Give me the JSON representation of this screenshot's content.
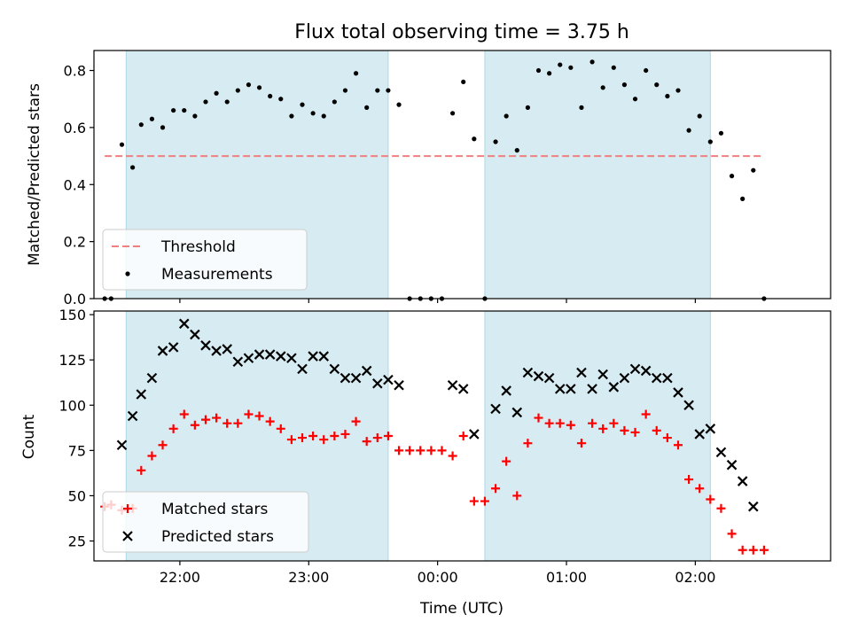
{
  "chart_data": [
    {
      "type": "scatter",
      "title": "Flux total observing time = 3.75 h",
      "ylabel": "Matched/Predicted stars",
      "xlabel": "",
      "xlim": [
        "21:20",
        "03:03"
      ],
      "ylim": [
        0,
        0.87
      ],
      "xticks": [
        "22:00",
        "23:00",
        "00:00",
        "01:00",
        "02:00"
      ],
      "yticks": [
        "0.0",
        "0.2",
        "0.4",
        "0.6",
        "0.8"
      ],
      "highlight_spans": [
        [
          "21:35",
          "23:37"
        ],
        [
          "00:22",
          "02:07"
        ]
      ],
      "highlight_color": "#add8e6",
      "threshold": {
        "name": "Threshold",
        "value": 0.5,
        "x_range": [
          "21:25",
          "02:32"
        ],
        "color": "#f08080"
      },
      "legend": {
        "placement": "lower-left",
        "entries": [
          "Threshold",
          "Measurements"
        ]
      },
      "series": [
        {
          "name": "Measurements",
          "color": "#000000",
          "points": [
            [
              "21:25",
              0.0
            ],
            [
              "21:28",
              0.0
            ],
            [
              "21:33",
              0.54
            ],
            [
              "21:38",
              0.46
            ],
            [
              "21:42",
              0.61
            ],
            [
              "21:47",
              0.63
            ],
            [
              "21:52",
              0.6
            ],
            [
              "21:57",
              0.66
            ],
            [
              "22:02",
              0.66
            ],
            [
              "22:07",
              0.64
            ],
            [
              "22:12",
              0.69
            ],
            [
              "22:17",
              0.72
            ],
            [
              "22:22",
              0.69
            ],
            [
              "22:27",
              0.73
            ],
            [
              "22:32",
              0.75
            ],
            [
              "22:37",
              0.74
            ],
            [
              "22:42",
              0.71
            ],
            [
              "22:47",
              0.7
            ],
            [
              "22:52",
              0.64
            ],
            [
              "22:57",
              0.68
            ],
            [
              "23:02",
              0.65
            ],
            [
              "23:07",
              0.64
            ],
            [
              "23:12",
              0.69
            ],
            [
              "23:17",
              0.73
            ],
            [
              "23:22",
              0.79
            ],
            [
              "23:27",
              0.67
            ],
            [
              "23:32",
              0.73
            ],
            [
              "23:37",
              0.73
            ],
            [
              "23:42",
              0.68
            ],
            [
              "23:47",
              0.0
            ],
            [
              "23:52",
              0.0
            ],
            [
              "23:57",
              0.0
            ],
            [
              "00:02",
              0.0
            ],
            [
              "00:07",
              0.65
            ],
            [
              "00:12",
              0.76
            ],
            [
              "00:17",
              0.56
            ],
            [
              "00:22",
              0.0
            ],
            [
              "00:27",
              0.55
            ],
            [
              "00:32",
              0.64
            ],
            [
              "00:37",
              0.52
            ],
            [
              "00:42",
              0.67
            ],
            [
              "00:47",
              0.8
            ],
            [
              "00:52",
              0.79
            ],
            [
              "00:57",
              0.82
            ],
            [
              "01:02",
              0.81
            ],
            [
              "01:07",
              0.67
            ],
            [
              "01:12",
              0.83
            ],
            [
              "01:17",
              0.74
            ],
            [
              "01:22",
              0.81
            ],
            [
              "01:27",
              0.75
            ],
            [
              "01:32",
              0.7
            ],
            [
              "01:37",
              0.8
            ],
            [
              "01:42",
              0.75
            ],
            [
              "01:47",
              0.71
            ],
            [
              "01:52",
              0.73
            ],
            [
              "01:57",
              0.59
            ],
            [
              "02:02",
              0.64
            ],
            [
              "02:07",
              0.55
            ],
            [
              "02:12",
              0.58
            ],
            [
              "02:17",
              0.43
            ],
            [
              "02:22",
              0.35
            ],
            [
              "02:27",
              0.45
            ],
            [
              "02:32",
              0.0
            ]
          ]
        }
      ]
    },
    {
      "type": "scatter",
      "title": "",
      "ylabel": "Count",
      "xlabel": "Time (UTC)",
      "xlim": [
        "21:20",
        "03:03"
      ],
      "ylim": [
        14,
        152
      ],
      "xticks": [
        "22:00",
        "23:00",
        "00:00",
        "01:00",
        "02:00"
      ],
      "yticks": [
        "25",
        "50",
        "75",
        "100",
        "125",
        "150"
      ],
      "highlight_spans": [
        [
          "21:35",
          "23:37"
        ],
        [
          "00:22",
          "02:07"
        ]
      ],
      "highlight_color": "#add8e6",
      "legend": {
        "placement": "lower-left",
        "entries": [
          "Matched stars",
          "Predicted stars"
        ]
      },
      "series": [
        {
          "name": "Matched stars",
          "marker": "plus",
          "color": "#ff0000",
          "points": [
            [
              "21:25",
              44
            ],
            [
              "21:28",
              45
            ],
            [
              "21:33",
              42
            ],
            [
              "21:38",
              43
            ],
            [
              "21:42",
              64
            ],
            [
              "21:47",
              72
            ],
            [
              "21:52",
              78
            ],
            [
              "21:57",
              87
            ],
            [
              "22:02",
              95
            ],
            [
              "22:07",
              89
            ],
            [
              "22:12",
              92
            ],
            [
              "22:17",
              93
            ],
            [
              "22:22",
              90
            ],
            [
              "22:27",
              90
            ],
            [
              "22:32",
              95
            ],
            [
              "22:37",
              94
            ],
            [
              "22:42",
              91
            ],
            [
              "22:47",
              87
            ],
            [
              "22:52",
              81
            ],
            [
              "22:57",
              82
            ],
            [
              "23:02",
              83
            ],
            [
              "23:07",
              81
            ],
            [
              "23:12",
              83
            ],
            [
              "23:17",
              84
            ],
            [
              "23:22",
              91
            ],
            [
              "23:27",
              80
            ],
            [
              "23:32",
              82
            ],
            [
              "23:37",
              83
            ],
            [
              "23:42",
              75
            ],
            [
              "23:47",
              75
            ],
            [
              "23:52",
              75
            ],
            [
              "23:57",
              75
            ],
            [
              "00:02",
              75
            ],
            [
              "00:07",
              72
            ],
            [
              "00:12",
              83
            ],
            [
              "00:17",
              47
            ],
            [
              "00:22",
              47
            ],
            [
              "00:27",
              54
            ],
            [
              "00:32",
              69
            ],
            [
              "00:37",
              50
            ],
            [
              "00:42",
              79
            ],
            [
              "00:47",
              93
            ],
            [
              "00:52",
              90
            ],
            [
              "00:57",
              90
            ],
            [
              "01:02",
              89
            ],
            [
              "01:07",
              79
            ],
            [
              "01:12",
              90
            ],
            [
              "01:17",
              87
            ],
            [
              "01:22",
              90
            ],
            [
              "01:27",
              86
            ],
            [
              "01:32",
              85
            ],
            [
              "01:37",
              95
            ],
            [
              "01:42",
              86
            ],
            [
              "01:47",
              82
            ],
            [
              "01:52",
              78
            ],
            [
              "01:57",
              59
            ],
            [
              "02:02",
              54
            ],
            [
              "02:07",
              48
            ],
            [
              "02:12",
              43
            ],
            [
              "02:17",
              29
            ],
            [
              "02:22",
              20
            ],
            [
              "02:27",
              20
            ],
            [
              "02:32",
              20
            ]
          ]
        },
        {
          "name": "Predicted stars",
          "marker": "x",
          "color": "#000000",
          "points": [
            [
              "21:33",
              78
            ],
            [
              "21:38",
              94
            ],
            [
              "21:42",
              106
            ],
            [
              "21:47",
              115
            ],
            [
              "21:52",
              130
            ],
            [
              "21:57",
              132
            ],
            [
              "22:02",
              145
            ],
            [
              "22:07",
              139
            ],
            [
              "22:12",
              133
            ],
            [
              "22:17",
              130
            ],
            [
              "22:22",
              131
            ],
            [
              "22:27",
              124
            ],
            [
              "22:32",
              126
            ],
            [
              "22:37",
              128
            ],
            [
              "22:42",
              128
            ],
            [
              "22:47",
              127
            ],
            [
              "22:52",
              126
            ],
            [
              "22:57",
              120
            ],
            [
              "23:02",
              127
            ],
            [
              "23:07",
              127
            ],
            [
              "23:12",
              120
            ],
            [
              "23:17",
              115
            ],
            [
              "23:22",
              115
            ],
            [
              "23:27",
              119
            ],
            [
              "23:32",
              112
            ],
            [
              "23:37",
              114
            ],
            [
              "23:42",
              111
            ],
            [
              "00:07",
              111
            ],
            [
              "00:12",
              109
            ],
            [
              "00:17",
              84
            ],
            [
              "00:27",
              98
            ],
            [
              "00:32",
              108
            ],
            [
              "00:37",
              96
            ],
            [
              "00:42",
              118
            ],
            [
              "00:47",
              116
            ],
            [
              "00:52",
              115
            ],
            [
              "00:57",
              109
            ],
            [
              "01:02",
              109
            ],
            [
              "01:07",
              118
            ],
            [
              "01:12",
              109
            ],
            [
              "01:17",
              117
            ],
            [
              "01:22",
              110
            ],
            [
              "01:27",
              115
            ],
            [
              "01:32",
              120
            ],
            [
              "01:37",
              119
            ],
            [
              "01:42",
              115
            ],
            [
              "01:47",
              115
            ],
            [
              "01:52",
              107
            ],
            [
              "01:57",
              100
            ],
            [
              "02:02",
              84
            ],
            [
              "02:07",
              87
            ],
            [
              "02:12",
              74
            ],
            [
              "02:17",
              67
            ],
            [
              "02:22",
              58
            ],
            [
              "02:27",
              44
            ]
          ]
        }
      ]
    }
  ]
}
